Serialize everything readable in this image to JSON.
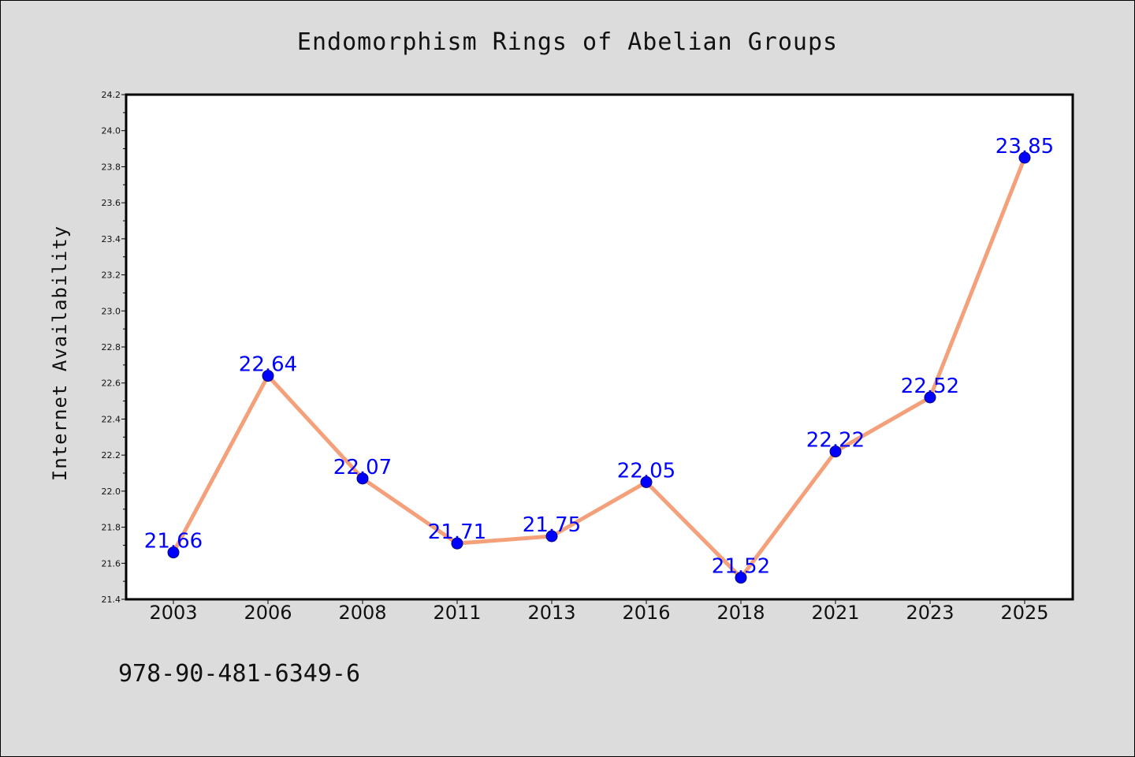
{
  "chart_data": {
    "type": "line",
    "title": "Endomorphism Rings of Abelian Groups",
    "xlabel": "",
    "ylabel": "Internet Availability",
    "categories": [
      "2003",
      "2006",
      "2008",
      "2011",
      "2013",
      "2016",
      "2018",
      "2021",
      "2023",
      "2025"
    ],
    "series": [
      {
        "values": [
          21.66,
          22.64,
          22.07,
          21.71,
          21.75,
          22.05,
          21.52,
          22.22,
          22.52,
          23.85
        ],
        "data_labels": [
          "21.66",
          "22.64",
          "22.07",
          "21.71",
          "21.75",
          "22.05",
          "21.52",
          "22.22",
          "22.52",
          "23.85"
        ]
      }
    ],
    "ylim": [
      21.4,
      24.2
    ],
    "yticks": [
      "21.4",
      "21.6",
      "21.8",
      "22.0",
      "22.2",
      "22.4",
      "22.6",
      "22.8",
      "23.0",
      "23.2",
      "23.4",
      "23.6",
      "23.8",
      "24.0",
      "24.2"
    ],
    "grid": false,
    "legend": "none",
    "colors": {
      "background": "#dcdcdc",
      "plot_background": "#ffffff",
      "line": "#f4a07a",
      "marker": "#0000ff",
      "data_label": "#0000ff",
      "axis": "#000000"
    }
  },
  "footer": {
    "isbn": "978-90-481-6349-6"
  }
}
